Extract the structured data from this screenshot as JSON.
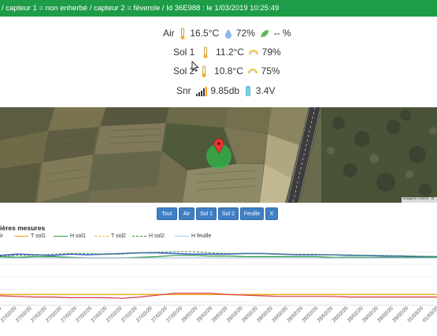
{
  "header": {
    "text": "/ capteur 1 = non enherbé / capteur 2 = féverole / Id 36E988 : le 1/03/2019 10:25:49"
  },
  "sensors": {
    "air": {
      "label": "Air",
      "temp": "16.5°C",
      "humidity": "72%",
      "leaf": "-- %"
    },
    "sol1": {
      "label": "Sol 1",
      "temp": "11.2°C",
      "humidity": "79%"
    },
    "sol2": {
      "label": "Sol 2",
      "temp": "10.8°C",
      "humidity": "75%"
    },
    "snr": {
      "label": "Snr",
      "signal": "9.85db",
      "battery": "3.4V"
    }
  },
  "map": {
    "attribution": "Imagerie ©2019 , G"
  },
  "filters": [
    "Tout",
    "Air",
    "Sol 1",
    "Sol 2",
    "Feuille",
    "X"
  ],
  "chart_title": "ières mesures",
  "chart_data": {
    "type": "line",
    "legend": [
      {
        "name": "ir",
        "color": "#4a5fd0",
        "dash": "solid"
      },
      {
        "name": "T sol1",
        "color": "#f0a020",
        "dash": "solid"
      },
      {
        "name": "H sol1",
        "color": "#2a9a3a",
        "dash": "solid"
      },
      {
        "name": "T sol2",
        "color": "#f0b030",
        "dash": "dashed"
      },
      {
        "name": "H sol2",
        "color": "#2a9a3a",
        "dash": "dashed"
      },
      {
        "name": "H feuille",
        "color": "#a8c8e8",
        "dash": "solid"
      }
    ],
    "x_labels": [
      "27/02/20",
      "27/02/20",
      "27/02/20",
      "27/02/20",
      "27/02/20",
      "27/02/20",
      "27/02/20",
      "27/02/20",
      "27/02/20",
      "27/02/20",
      "27/02/20",
      "27/02/20",
      "27/02/20",
      "28/02/20",
      "28/02/20",
      "28/02/20",
      "28/02/20",
      "28/02/20",
      "28/02/20",
      "28/02/20",
      "28/02/20",
      "28/02/20",
      "28/02/20",
      "28/02/20",
      "28/02/20",
      "28/02/20",
      "28/02/20",
      "28/02/20",
      "01/03/20",
      "01/03/20"
    ],
    "series": [
      {
        "color": "#4a5fd0",
        "dash": "solid",
        "width": 1.6,
        "values": [
          74,
          76,
          75,
          74,
          76,
          75,
          76,
          77,
          78,
          78,
          77,
          76,
          76,
          76,
          77,
          77,
          76,
          75,
          75,
          75,
          74,
          74,
          73,
          73,
          72,
          72
        ]
      },
      {
        "color": "#2a9a3a",
        "dash": "solid",
        "width": 1.2,
        "values": [
          72,
          71,
          72,
          72,
          71,
          70,
          70,
          70,
          71,
          72,
          74,
          74,
          73,
          73,
          72,
          72,
          72,
          72,
          72,
          71,
          71,
          71,
          71,
          71,
          71,
          71
        ]
      },
      {
        "color": "#2a9a3a",
        "dash": "dashed",
        "width": 1.0,
        "values": [
          73,
          74,
          74,
          76,
          77,
          77,
          76,
          76,
          78,
          79,
          80,
          80,
          78,
          77,
          77,
          77,
          76,
          76,
          76,
          75,
          75,
          74,
          74,
          73,
          73,
          72
        ]
      },
      {
        "color": "#9ab8e0",
        "dash": "solid",
        "width": 1.0,
        "values": [
          70,
          70,
          70,
          70,
          70,
          70,
          70,
          70,
          70,
          70,
          70,
          70,
          70,
          70,
          70,
          70,
          70,
          70,
          70,
          70,
          70,
          70,
          70,
          70,
          70,
          70
        ]
      },
      {
        "color": "#f0a020",
        "dash": "solid",
        "width": 1.4,
        "values": [
          12,
          12,
          12,
          12,
          12,
          12,
          12,
          12,
          12,
          12,
          12,
          12,
          12,
          12,
          12,
          12,
          12,
          12,
          12,
          12,
          12,
          12,
          12,
          12,
          12,
          12
        ]
      },
      {
        "color": "#f0b030",
        "dash": "dashed",
        "width": 1.0,
        "values": [
          12.4,
          12.4,
          12.4,
          12.4,
          12.4,
          12.4,
          12.4,
          12.4,
          12.4,
          12.4,
          12.4,
          12.4,
          12.4,
          12.4,
          12.4,
          12.4,
          12.4,
          12.4,
          12.4,
          12.4,
          12.4,
          12.4,
          12.4,
          12.4,
          12.4,
          12.4
        ]
      },
      {
        "color": "#d03a3a",
        "dash": "solid",
        "width": 1.2,
        "values": [
          10,
          9,
          8,
          8,
          7,
          7,
          7,
          6,
          8,
          11,
          14,
          14,
          14,
          12,
          11,
          10,
          9,
          9,
          9,
          9,
          8,
          8,
          8,
          8,
          8,
          8
        ]
      }
    ]
  }
}
